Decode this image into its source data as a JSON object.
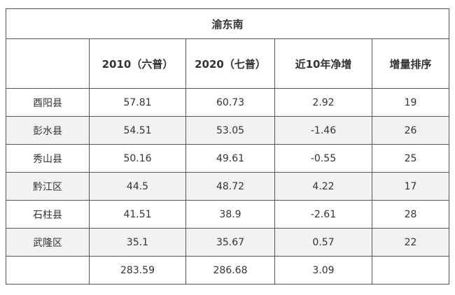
{
  "table": {
    "title": "渝东南",
    "headers": [
      "",
      "2010（六普）",
      "2020（七普）",
      "近10年净增",
      "增量排序"
    ],
    "rows": [
      [
        "酉阳县",
        "57.81",
        "60.73",
        "2.92",
        "19"
      ],
      [
        "彭水县",
        "54.51",
        "53.05",
        "-1.46",
        "26"
      ],
      [
        "秀山县",
        "50.16",
        "49.61",
        "-0.55",
        "25"
      ],
      [
        "黔江区",
        "44.5",
        "48.72",
        "4.22",
        "17"
      ],
      [
        "石柱县",
        "41.51",
        "38.9",
        "-2.61",
        "28"
      ],
      [
        "武隆区",
        "35.1",
        "35.67",
        "0.57",
        "22"
      ]
    ],
    "total": [
      "",
      "283.59",
      "286.68",
      "3.09",
      ""
    ]
  },
  "colors": {
    "border": "#555555",
    "alt_row_bg": "#f2f2f2",
    "text": "#333333"
  }
}
